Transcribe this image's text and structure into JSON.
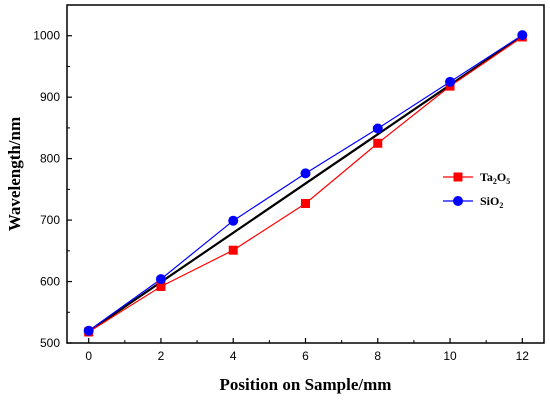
{
  "chart_data": {
    "type": "line",
    "xlabel": "Position on Sample/mm",
    "ylabel": "Wavelength/nm",
    "xlim": [
      -0.6,
      12.6
    ],
    "ylim": [
      500,
      1050
    ],
    "xticks": [
      0,
      2,
      4,
      6,
      8,
      10,
      12
    ],
    "yticks": [
      500,
      600,
      700,
      800,
      900,
      1000
    ],
    "x": [
      0,
      2,
      4,
      6,
      8,
      10,
      12
    ],
    "series": [
      {
        "name": "Ta2O5",
        "label_base": "Ta",
        "label_sub1": "2",
        "label_mid": "O",
        "label_sub2": "5",
        "color": "#ff0000",
        "marker": "square",
        "values": [
          518,
          592,
          651,
          727,
          825,
          918,
          998
        ]
      },
      {
        "name": "SiO2",
        "label_base": "SiO",
        "label_sub1": "2",
        "color": "#0000ff",
        "marker": "circle",
        "values": [
          520,
          604,
          699,
          776,
          849,
          925,
          1001
        ]
      }
    ],
    "reference_line": {
      "color": "#000000",
      "from": [
        0,
        519
      ],
      "to": [
        12,
        1000
      ]
    },
    "legend_position": "right"
  }
}
